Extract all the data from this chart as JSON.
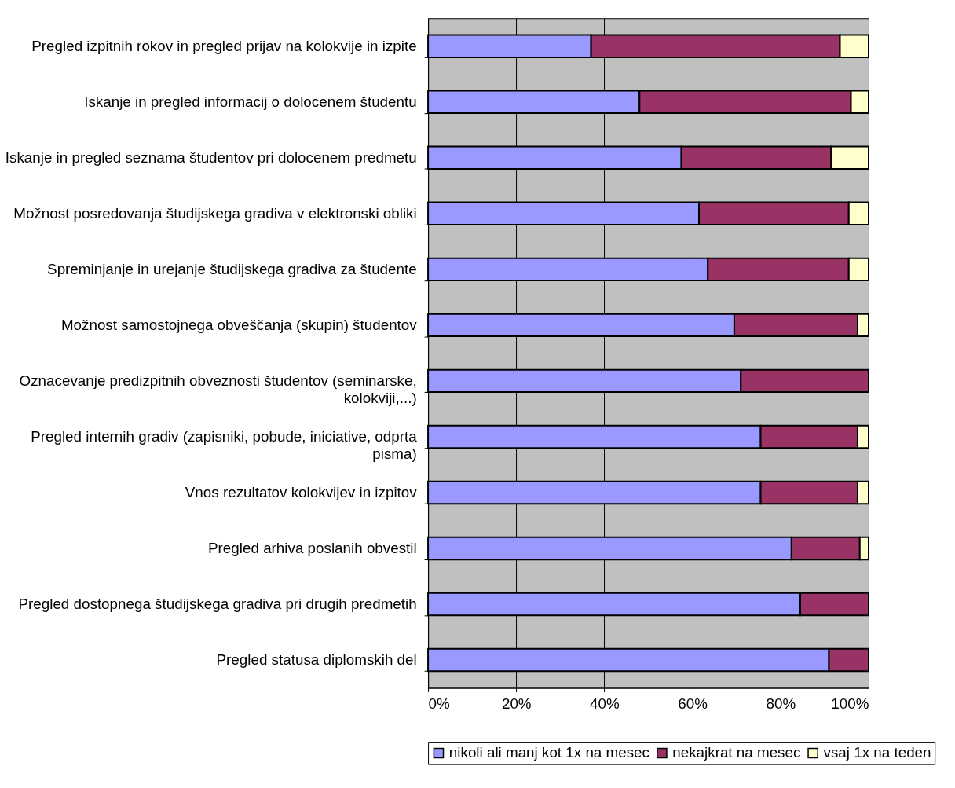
{
  "chart_data": {
    "type": "bar",
    "orientation": "horizontal",
    "stacked": true,
    "categories": [
      "Pregled izpitnih rokov in pregled prijav na kolokvije in izpite",
      "Iskanje in pregled informacij o dolocenem študentu",
      "Iskanje in pregled seznama študentov pri dolocenem predmetu",
      "Možnost posredovanja študijskega gradiva v elektronski obliki",
      "Spreminjanje in urejanje študijskega gradiva za študente",
      "Možnost samostojnega obveščanja (skupin) študentov",
      "Oznacevanje predizpitnih obveznosti študentov (seminarske, kolokviji,...)",
      "Pregled internih gradiv (zapisniki, pobude, iniciative, odprta pisma)",
      "Vnos rezultatov kolokvijev in izpitov",
      "Pregled arhiva poslanih obvestil",
      "Pregled dostopnega študijskega gradiva pri drugih predmetih",
      "Pregled statusa diplomskih del"
    ],
    "series": [
      {
        "name": "nikoli ali manj kot 1x na mesec",
        "color": "#9999ff",
        "values": [
          37,
          48,
          57.5,
          61.5,
          63.5,
          69.5,
          71,
          75.5,
          75.5,
          82.5,
          84.5,
          91
        ]
      },
      {
        "name": "nekajkrat na mesec",
        "color": "#993366",
        "values": [
          56.5,
          48,
          34,
          34,
          32,
          28,
          29,
          22,
          22,
          15.5,
          15.5,
          9
        ]
      },
      {
        "name": "vsaj 1x na teden",
        "color": "#ffffcc",
        "values": [
          6.5,
          4,
          8.5,
          4.5,
          4.5,
          2.5,
          null,
          2.5,
          2.5,
          2,
          null,
          null
        ]
      }
    ],
    "xlim": [
      0,
      100
    ],
    "xticks": [
      {
        "value": 0,
        "label": "0%"
      },
      {
        "value": 20,
        "label": "20%"
      },
      {
        "value": 40,
        "label": "40%"
      },
      {
        "value": 60,
        "label": "60%"
      },
      {
        "value": 80,
        "label": "80%"
      },
      {
        "value": 100,
        "label": "100%"
      }
    ],
    "grid": "x",
    "legend": "bottom"
  }
}
